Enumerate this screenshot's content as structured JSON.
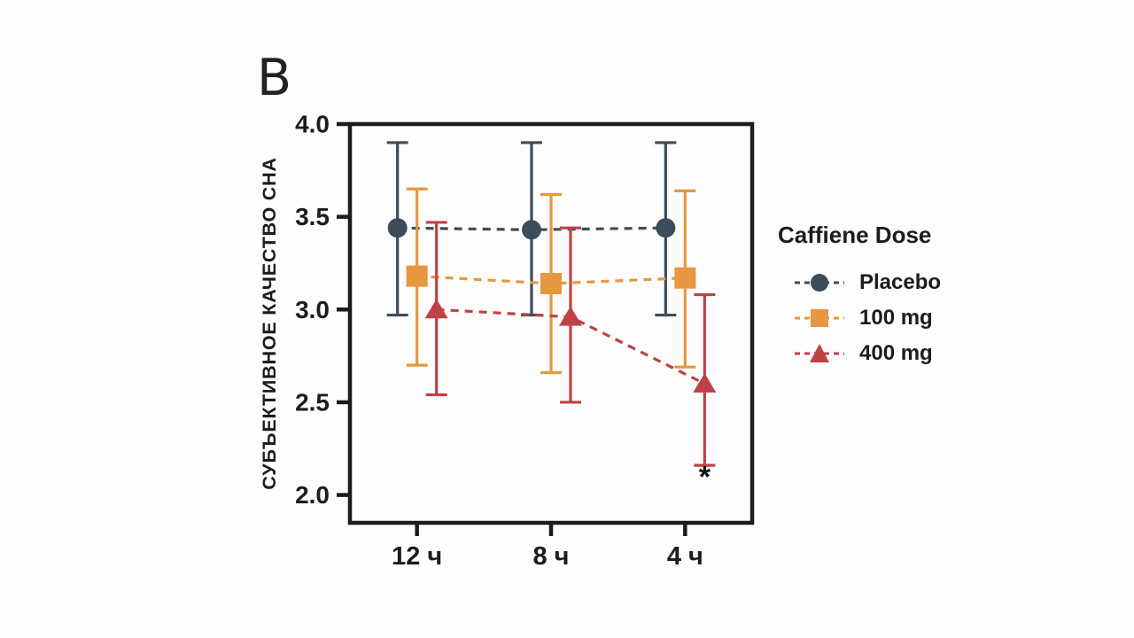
{
  "panel_label": "B",
  "colors": {
    "ink": "#1c1c1c",
    "background": "#fdfdfd"
  },
  "chart_data": {
    "type": "line",
    "title": "",
    "xlabel": "",
    "ylabel": "СУБЪЕКТИВНОЕ КАЧЕСТВО СНА",
    "categories": [
      "12 ч",
      "8 ч",
      "4 ч"
    ],
    "ylim": [
      1.85,
      4.0
    ],
    "yticks": [
      2.0,
      2.5,
      3.0,
      3.5,
      4.0
    ],
    "grid": false,
    "error_bars": true,
    "legend_title": "Caffiene Dose",
    "legend_position": "right",
    "series": [
      {
        "name": "Placebo",
        "marker": "circle",
        "color": "#3c4c59",
        "values": [
          3.44,
          3.43,
          3.44
        ],
        "ci_low": [
          2.97,
          2.97,
          2.97
        ],
        "ci_high": [
          3.9,
          3.9,
          3.9
        ]
      },
      {
        "name": "100 mg",
        "marker": "square",
        "color": "#e6973f",
        "values": [
          3.18,
          3.14,
          3.17
        ],
        "ci_low": [
          2.7,
          2.66,
          2.69
        ],
        "ci_high": [
          3.65,
          3.62,
          3.64
        ]
      },
      {
        "name": "400 mg",
        "marker": "triangle",
        "color": "#bf4146",
        "values": [
          3.0,
          2.96,
          2.6
        ],
        "ci_low": [
          2.54,
          2.5,
          2.16
        ],
        "ci_high": [
          3.47,
          3.44,
          3.08
        ]
      }
    ],
    "annotations": [
      {
        "text": "*",
        "category_index": 2,
        "series": "400 mg",
        "y": 2.1
      }
    ]
  }
}
